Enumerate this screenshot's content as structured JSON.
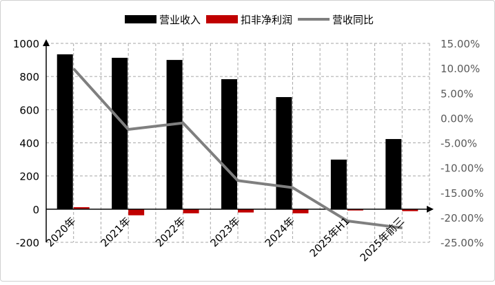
{
  "chart_data": {
    "type": "bar+line",
    "categories": [
      "2020年",
      "2021年",
      "2022年",
      "2023年",
      "2024年",
      "2025年H1",
      "2025年前三"
    ],
    "series": [
      {
        "name": "营业收入",
        "type": "bar",
        "axis": "left",
        "color": "#000000",
        "values": [
          934,
          913,
          900,
          784,
          676,
          299,
          423
        ]
      },
      {
        "name": "扣非净利润",
        "type": "bar",
        "axis": "left",
        "color": "#c00000",
        "values": [
          12,
          -37,
          -25,
          -20,
          -25,
          -8,
          -12
        ]
      },
      {
        "name": "营收同比",
        "type": "line",
        "axis": "right",
        "color": "#7f7f7f",
        "values": [
          9.9,
          -2.3,
          -1.0,
          -12.6,
          -14.0,
          -20.7,
          -22.1
        ]
      }
    ],
    "left_axis": {
      "ylim": [
        -200,
        1000
      ],
      "ticks": [
        "-200",
        "0",
        "200",
        "400",
        "600",
        "800",
        "1000"
      ]
    },
    "right_axis": {
      "ylim": [
        -25,
        15
      ],
      "ticks": [
        "-25.00%",
        "-20.00%",
        "-15.00%",
        "-10.00%",
        "-5.00%",
        "0.00%",
        "5.00%",
        "10.00%",
        "15.00%"
      ]
    },
    "grid": true,
    "legend": "top"
  }
}
